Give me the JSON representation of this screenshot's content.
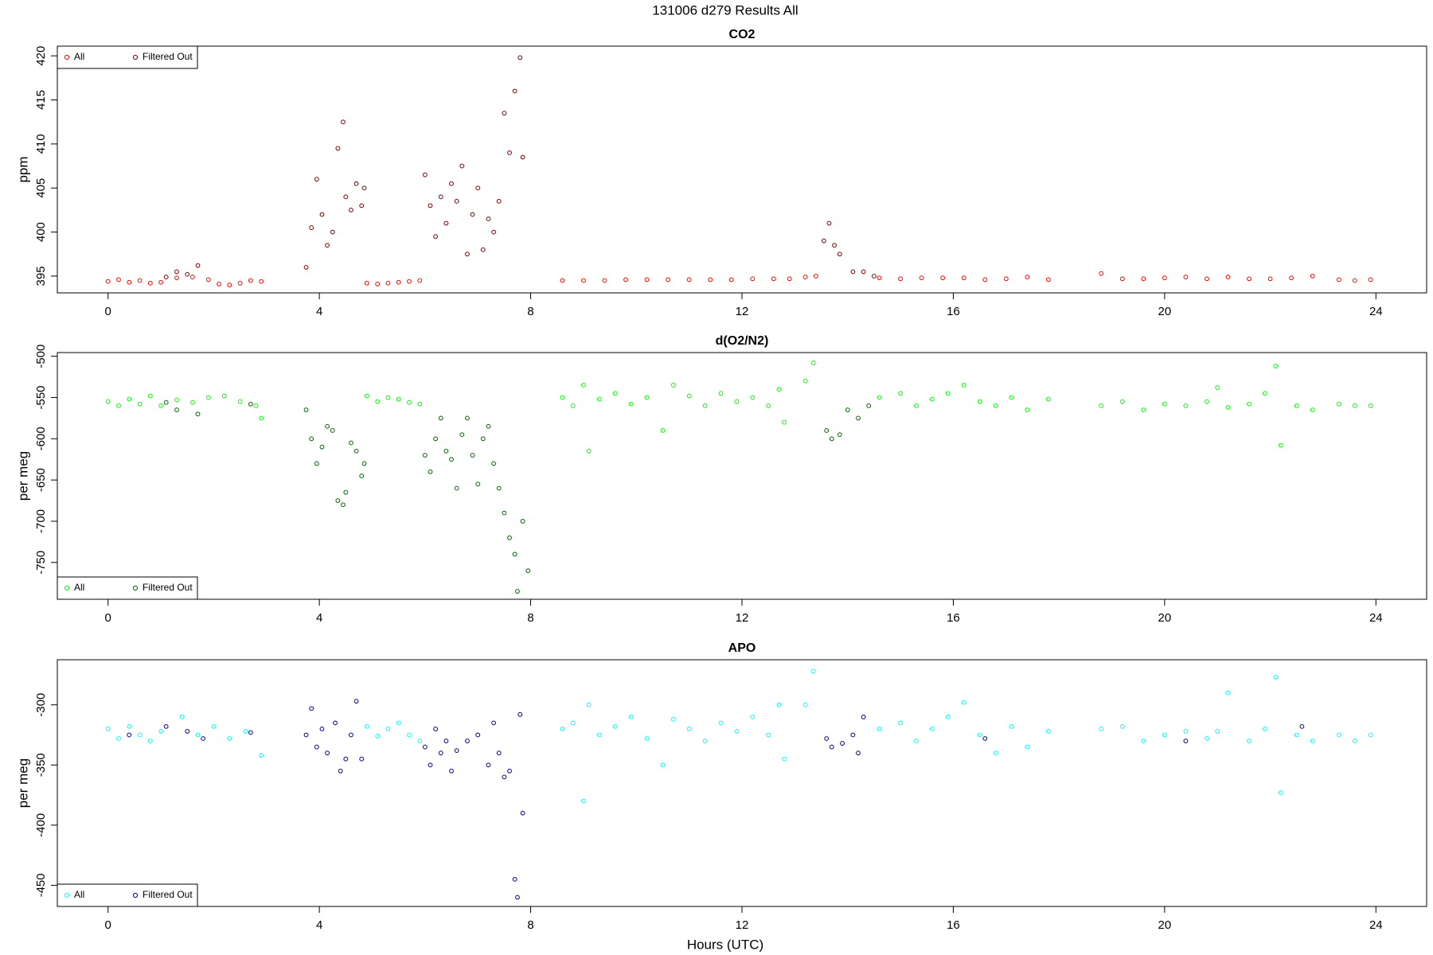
{
  "title": "131006   d279   Results All",
  "xlabel": "Hours (UTC)",
  "chart_data": [
    {
      "type": "scatter",
      "title": "CO2",
      "ylabel": "ppm",
      "legend": "top-left",
      "xlim": [
        -0.96,
        24.96
      ],
      "xticks": [
        0,
        4,
        8,
        12,
        16,
        20,
        24
      ],
      "ylim": [
        393.1,
        421.1
      ],
      "yticks": [
        395,
        400,
        405,
        410,
        415,
        420
      ],
      "series": [
        {
          "name": "All",
          "color": "#ff0000",
          "x": [
            0.0,
            0.2,
            0.4,
            0.6,
            0.8,
            1.0,
            1.3,
            1.6,
            1.9,
            2.1,
            2.3,
            2.5,
            2.7,
            2.9,
            4.9,
            5.1,
            5.3,
            5.5,
            5.7,
            5.9,
            8.6,
            9.0,
            9.4,
            9.8,
            10.2,
            10.6,
            11.0,
            11.4,
            11.8,
            12.2,
            12.6,
            12.9,
            13.2,
            13.4,
            14.6,
            15.0,
            15.4,
            15.8,
            16.2,
            16.6,
            17.0,
            17.4,
            17.8,
            18.8,
            19.2,
            19.6,
            20.0,
            20.4,
            20.8,
            21.2,
            21.6,
            22.0,
            22.4,
            22.8,
            23.3,
            23.6,
            23.9
          ],
          "values": [
            394.4,
            394.6,
            394.3,
            394.5,
            394.2,
            394.3,
            394.8,
            394.9,
            394.6,
            394.1,
            394.0,
            394.2,
            394.5,
            394.4,
            394.2,
            394.1,
            394.2,
            394.3,
            394.4,
            394.5,
            394.5,
            394.5,
            394.5,
            394.6,
            394.6,
            394.6,
            394.6,
            394.6,
            394.6,
            394.7,
            394.7,
            394.7,
            394.9,
            395.0,
            394.8,
            394.7,
            394.8,
            394.8,
            394.8,
            394.6,
            394.7,
            394.9,
            394.6,
            395.3,
            394.7,
            394.7,
            394.8,
            394.9,
            394.7,
            394.9,
            394.7,
            394.7,
            394.8,
            395.0,
            394.6,
            394.5,
            394.6
          ]
        },
        {
          "name": "Filtered Out",
          "color": "#7a0000",
          "x": [
            1.1,
            1.3,
            1.5,
            1.7,
            3.75,
            3.85,
            3.95,
            4.05,
            4.15,
            4.25,
            4.35,
            4.45,
            4.5,
            4.6,
            4.7,
            4.8,
            4.85,
            6.0,
            6.1,
            6.2,
            6.3,
            6.4,
            6.5,
            6.6,
            6.7,
            6.8,
            6.9,
            7.0,
            7.1,
            7.2,
            7.3,
            7.4,
            7.5,
            7.6,
            7.7,
            7.8,
            7.85,
            13.55,
            13.65,
            13.75,
            13.85,
            14.1,
            14.3,
            14.5
          ],
          "values": [
            394.9,
            395.5,
            395.2,
            396.2,
            396.0,
            400.5,
            406.0,
            402.0,
            398.5,
            400.0,
            409.5,
            412.5,
            404.0,
            402.5,
            405.5,
            403.0,
            405.0,
            406.5,
            403.0,
            399.5,
            404.0,
            401.0,
            405.5,
            403.5,
            407.5,
            397.5,
            402.0,
            405.0,
            398.0,
            401.5,
            400.0,
            403.5,
            413.5,
            409.0,
            416.0,
            419.8,
            408.5,
            399.0,
            401.0,
            398.5,
            397.5,
            395.5,
            395.5,
            395.0
          ]
        }
      ]
    },
    {
      "type": "scatter",
      "title": "d(O2/N2)",
      "ylabel": "per meg",
      "legend": "bottom-left",
      "xlim": [
        -0.96,
        24.96
      ],
      "xticks": [
        0,
        4,
        8,
        12,
        16,
        20,
        24
      ],
      "ylim": [
        -794.6,
        -495.5
      ],
      "yticks": [
        -750,
        -700,
        -650,
        -600,
        -550,
        -500
      ],
      "series": [
        {
          "name": "All",
          "color": "#00ff00",
          "x": [
            0.0,
            0.2,
            0.4,
            0.6,
            0.8,
            1.0,
            1.3,
            1.6,
            1.9,
            2.2,
            2.5,
            2.8,
            2.9,
            4.9,
            5.1,
            5.3,
            5.5,
            5.7,
            5.9,
            8.6,
            8.8,
            9.0,
            9.1,
            9.3,
            9.6,
            9.9,
            10.2,
            10.5,
            10.7,
            11.0,
            11.3,
            11.6,
            11.9,
            12.2,
            12.5,
            12.7,
            12.8,
            13.2,
            13.35,
            14.6,
            15.0,
            15.3,
            15.6,
            15.9,
            16.2,
            16.5,
            16.8,
            17.1,
            17.4,
            17.8,
            18.8,
            19.2,
            19.6,
            20.0,
            20.4,
            20.8,
            21.0,
            21.2,
            21.6,
            21.9,
            22.1,
            22.2,
            22.5,
            22.8,
            23.3,
            23.6,
            23.9
          ],
          "values": [
            -555,
            -560,
            -552,
            -558,
            -548,
            -560,
            -553,
            -556,
            -550,
            -548,
            -555,
            -560,
            -575,
            -548,
            -555,
            -550,
            -552,
            -556,
            -558,
            -550,
            -560,
            -535,
            -615,
            -552,
            -545,
            -558,
            -550,
            -590,
            -535,
            -548,
            -560,
            -545,
            -555,
            -550,
            -560,
            -540,
            -580,
            -530,
            -508,
            -550,
            -545,
            -560,
            -552,
            -545,
            -535,
            -555,
            -560,
            -550,
            -565,
            -552,
            -560,
            -555,
            -565,
            -558,
            -560,
            -555,
            -538,
            -562,
            -558,
            -545,
            -512,
            -608,
            -560,
            -565,
            -558,
            -560,
            -560
          ]
        },
        {
          "name": "Filtered Out",
          "color": "#006400",
          "x": [
            1.1,
            1.3,
            1.7,
            2.7,
            3.75,
            3.85,
            3.95,
            4.05,
            4.15,
            4.25,
            4.35,
            4.45,
            4.5,
            4.6,
            4.7,
            4.8,
            4.85,
            6.0,
            6.1,
            6.2,
            6.3,
            6.4,
            6.5,
            6.6,
            6.7,
            6.8,
            6.9,
            7.0,
            7.1,
            7.2,
            7.3,
            7.4,
            7.5,
            7.6,
            7.7,
            7.75,
            7.85,
            7.95,
            13.6,
            13.7,
            13.85,
            14.0,
            14.2,
            14.4
          ],
          "values": [
            -556,
            -565,
            -570,
            -558,
            -565,
            -600,
            -630,
            -610,
            -585,
            -590,
            -675,
            -680,
            -665,
            -605,
            -615,
            -645,
            -630,
            -620,
            -640,
            -600,
            -575,
            -615,
            -625,
            -660,
            -595,
            -575,
            -620,
            -655,
            -600,
            -585,
            -630,
            -660,
            -690,
            -720,
            -740,
            -785,
            -700,
            -760,
            -590,
            -600,
            -595,
            -565,
            -575,
            -560
          ]
        }
      ]
    },
    {
      "type": "scatter",
      "title": "APO",
      "ylabel": "per meg",
      "legend": "bottom-left",
      "xlim": [
        -0.96,
        24.96
      ],
      "xticks": [
        0,
        4,
        8,
        12,
        16,
        20,
        24
      ],
      "ylim": [
        -467.6,
        -262.5
      ],
      "yticks": [
        -450,
        -400,
        -350,
        -300
      ],
      "series": [
        {
          "name": "All",
          "color": "#00ffff",
          "x": [
            0.0,
            0.2,
            0.4,
            0.6,
            0.8,
            1.0,
            1.4,
            1.7,
            2.0,
            2.3,
            2.6,
            2.9,
            4.9,
            5.1,
            5.3,
            5.5,
            5.7,
            5.9,
            8.6,
            8.8,
            9.0,
            9.1,
            9.3,
            9.6,
            9.9,
            10.2,
            10.5,
            10.7,
            11.0,
            11.3,
            11.6,
            11.9,
            12.2,
            12.5,
            12.7,
            12.8,
            13.2,
            13.35,
            14.6,
            15.0,
            15.3,
            15.6,
            15.9,
            16.2,
            16.5,
            16.8,
            17.1,
            17.4,
            17.8,
            18.8,
            19.2,
            19.6,
            20.0,
            20.4,
            20.8,
            21.0,
            21.2,
            21.6,
            21.9,
            22.1,
            22.2,
            22.5,
            22.8,
            23.3,
            23.6,
            23.9
          ],
          "values": [
            -320,
            -328,
            -318,
            -325,
            -330,
            -322,
            -310,
            -325,
            -318,
            -328,
            -322,
            -342,
            -318,
            -326,
            -320,
            -315,
            -325,
            -330,
            -320,
            -315,
            -380,
            -300,
            -325,
            -318,
            -310,
            -328,
            -350,
            -312,
            -320,
            -330,
            -315,
            -322,
            -310,
            -325,
            -300,
            -345,
            -300,
            -272,
            -320,
            -315,
            -330,
            -320,
            -310,
            -298,
            -325,
            -340,
            -318,
            -335,
            -322,
            -320,
            -318,
            -330,
            -325,
            -322,
            -328,
            -322,
            -290,
            -330,
            -320,
            -277,
            -373,
            -325,
            -330,
            -325,
            -330,
            -325
          ]
        },
        {
          "name": "Filtered Out",
          "color": "#00008b",
          "x": [
            0.4,
            1.1,
            1.5,
            1.8,
            2.7,
            3.75,
            3.85,
            3.95,
            4.05,
            4.15,
            4.3,
            4.4,
            4.5,
            4.6,
            4.7,
            4.8,
            6.0,
            6.1,
            6.2,
            6.3,
            6.4,
            6.5,
            6.6,
            6.8,
            7.0,
            7.2,
            7.3,
            7.4,
            7.5,
            7.6,
            7.7,
            7.75,
            7.8,
            7.85,
            13.6,
            13.7,
            13.9,
            14.1,
            14.2,
            14.3,
            16.6,
            20.4,
            22.6
          ],
          "values": [
            -325,
            -318,
            -322,
            -328,
            -323,
            -325,
            -303,
            -335,
            -320,
            -340,
            -315,
            -355,
            -345,
            -325,
            -297,
            -345,
            -335,
            -350,
            -320,
            -340,
            -330,
            -355,
            -338,
            -330,
            -325,
            -350,
            -315,
            -340,
            -360,
            -355,
            -445,
            -460,
            -308,
            -390,
            -328,
            -335,
            -332,
            -325,
            -340,
            -310,
            -328,
            -330,
            -318
          ]
        }
      ]
    }
  ]
}
